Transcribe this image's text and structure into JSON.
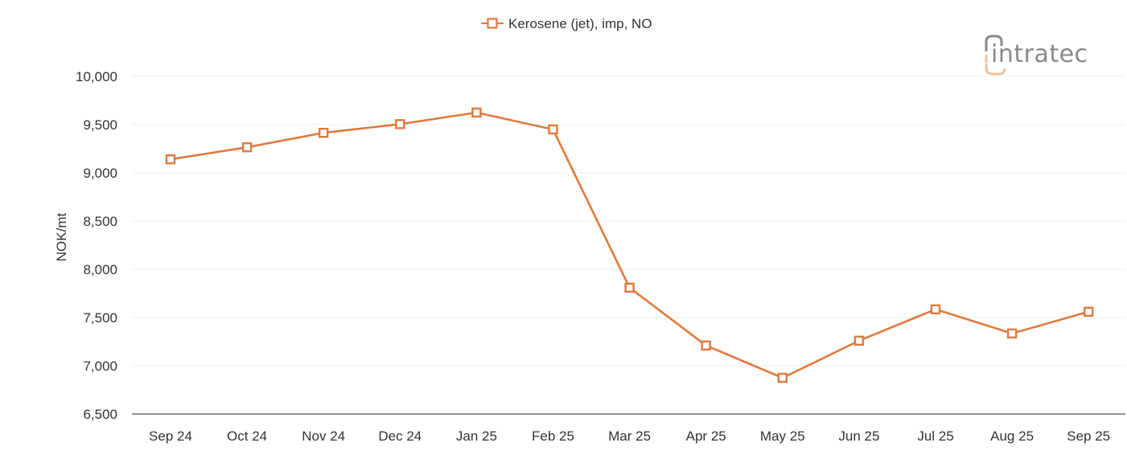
{
  "logo": {
    "text": "intratec"
  },
  "chart_data": {
    "type": "line",
    "title": "",
    "xlabel": "",
    "ylabel": "NOK/mt",
    "ylim": [
      6500,
      10000
    ],
    "yticks": [
      6500,
      7000,
      7500,
      8000,
      8500,
      9000,
      9500,
      10000
    ],
    "ytick_labels": [
      "6,500",
      "7,000",
      "7,500",
      "8,000",
      "8,500",
      "9,000",
      "9,500",
      "10,000"
    ],
    "grid": "horizontal",
    "legend_position": "top-center",
    "categories": [
      "Sep 24",
      "Oct 24",
      "Nov 24",
      "Dec 24",
      "Jan 25",
      "Feb 25",
      "Mar 25",
      "Apr 25",
      "May 25",
      "Jun 25",
      "Jul 25",
      "Aug 25",
      "Sep 25"
    ],
    "series": [
      {
        "name": "Kerosene (jet), imp, NO",
        "color": "#e07a3e",
        "marker": "open-square",
        "values": [
          9140,
          9265,
          9415,
          9505,
          9625,
          9450,
          7810,
          7210,
          6875,
          7260,
          7585,
          7335,
          7560
        ]
      }
    ]
  }
}
